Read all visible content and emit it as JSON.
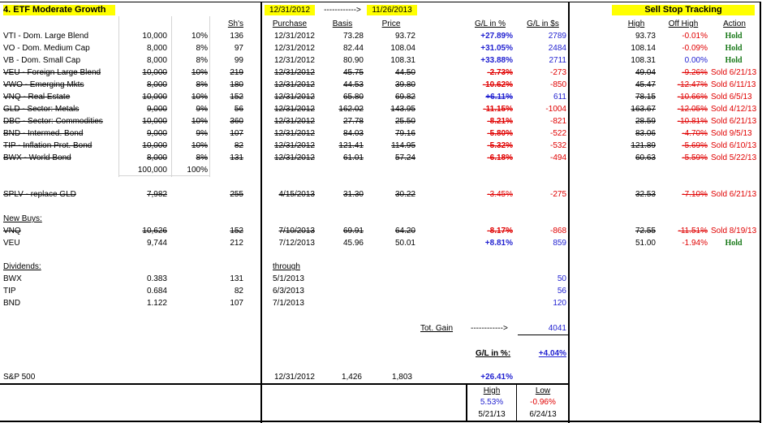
{
  "title": "4. ETF Moderate Growth",
  "header": {
    "shares": "Sh's",
    "date_start": "12/31/2012",
    "arrow": "------------>",
    "date_end": "11/26/2013",
    "purchase": "Purchase",
    "basis": "Basis",
    "price": "Price",
    "gl_pct": "G/L in %",
    "gl_dollar": "G/L in $s"
  },
  "sell_stop": {
    "title": "Sell Stop Tracking",
    "high": "High",
    "off_high": "Off High",
    "action": "Action"
  },
  "holdings": [
    {
      "name": "VTI - Dom. Large Blend",
      "amount": "10,000",
      "alloc": "10%",
      "shares": "136",
      "purchase": "12/31/2012",
      "basis": "73.28",
      "price": "93.72",
      "gl_pct": "+27.89%",
      "gl_dollar": "2789",
      "high": "93.73",
      "off_high": "-0.01%",
      "action": "Hold",
      "sold": false
    },
    {
      "name": "VO - Dom. Medium Cap",
      "amount": "8,000",
      "alloc": "8%",
      "shares": "97",
      "purchase": "12/31/2012",
      "basis": "82.44",
      "price": "108.04",
      "gl_pct": "+31.05%",
      "gl_dollar": "2484",
      "high": "108.14",
      "off_high": "-0.09%",
      "action": "Hold",
      "sold": false
    },
    {
      "name": "VB - Dom. Small Cap",
      "amount": "8,000",
      "alloc": "8%",
      "shares": "99",
      "purchase": "12/31/2012",
      "basis": "80.90",
      "price": "108.31",
      "gl_pct": "+33.88%",
      "gl_dollar": "2711",
      "high": "108.31",
      "off_high": "0.00%",
      "action": "Hold",
      "sold": false
    },
    {
      "name": "VEU - Foreign Large Blend",
      "amount": "10,000",
      "alloc": "10%",
      "shares": "219",
      "purchase": "12/31/2012",
      "basis": "45.75",
      "price": "44.50",
      "gl_pct": "-2.73%",
      "gl_dollar": "-273",
      "high": "49.04",
      "off_high": "-9.26%",
      "action": "Sold 6/21/13",
      "sold": true
    },
    {
      "name": "VWO - Emerging Mkts",
      "amount": "8,000",
      "alloc": "8%",
      "shares": "180",
      "purchase": "12/31/2012",
      "basis": "44.53",
      "price": "39.80",
      "gl_pct": "-10.62%",
      "gl_dollar": "-850",
      "high": "45.47",
      "off_high": "-12.47%",
      "action": "Sold 6/11/13",
      "sold": true
    },
    {
      "name": "VNQ - Real Estate",
      "amount": "10,000",
      "alloc": "10%",
      "shares": "152",
      "purchase": "12/31/2012",
      "basis": "65.80",
      "price": "69.82",
      "gl_pct": "+6.11%",
      "gl_dollar": "611",
      "high": "78.15",
      "off_high": "-10.66%",
      "action": "Sold 6/5/13",
      "sold": true
    },
    {
      "name": "GLD - Sector: Metals",
      "amount": "9,000",
      "alloc": "9%",
      "shares": "56",
      "purchase": "12/31/2012",
      "basis": "162.02",
      "price": "143.95",
      "gl_pct": "-11.15%",
      "gl_dollar": "-1004",
      "high": "163.67",
      "off_high": "-12.05%",
      "action": "Sold 4/12/13",
      "sold": true
    },
    {
      "name": "DBC - Sector: Commodities",
      "amount": "10,000",
      "alloc": "10%",
      "shares": "360",
      "purchase": "12/31/2012",
      "basis": "27.78",
      "price": "25.50",
      "gl_pct": "-8.21%",
      "gl_dollar": "-821",
      "high": "28.59",
      "off_high": "-10.81%",
      "action": "Sold 6/21/13",
      "sold": true
    },
    {
      "name": "BND - Intermed. Bond",
      "amount": "9,000",
      "alloc": "9%",
      "shares": "107",
      "purchase": "12/31/2012",
      "basis": "84.03",
      "price": "79.16",
      "gl_pct": "-5.80%",
      "gl_dollar": "-522",
      "high": "83.06",
      "off_high": "-4.70%",
      "action": "Sold 9/5/13",
      "sold": true
    },
    {
      "name": "TIP - Inflation Prot. Bond",
      "amount": "10,000",
      "alloc": "10%",
      "shares": "82",
      "purchase": "12/31/2012",
      "basis": "121.41",
      "price": "114.95",
      "gl_pct": "-5.32%",
      "gl_dollar": "-532",
      "high": "121.89",
      "off_high": "-5.69%",
      "action": "Sold 6/10/13",
      "sold": true
    },
    {
      "name": "BWX - World Bond",
      "amount": "8,000",
      "alloc": "8%",
      "shares": "131",
      "purchase": "12/31/2012",
      "basis": "61.01",
      "price": "57.24",
      "gl_pct": "-6.18%",
      "gl_dollar": "-494",
      "high": "60.63",
      "off_high": "-5.59%",
      "action": "Sold 5/22/13",
      "sold": true
    }
  ],
  "totals": {
    "amount": "100,000",
    "alloc": "100%"
  },
  "replacement": {
    "name": "SPLV - replace GLD",
    "amount": "7,982",
    "shares": "255",
    "purchase": "4/15/2013",
    "basis": "31.30",
    "price": "30.22",
    "gl_pct": "-3.45%",
    "gl_dollar": "-275",
    "high": "32.53",
    "off_high": "-7.10%",
    "action": "Sold 6/21/13"
  },
  "new_buys": {
    "label": "New Buys:",
    "rows": [
      {
        "name": "VNQ",
        "amount": "10,626",
        "shares": "152",
        "purchase": "7/10/2013",
        "basis": "69.91",
        "price": "64.20",
        "gl_pct": "-8.17%",
        "gl_dollar": "-868",
        "high": "72.55",
        "off_high": "-11.51%",
        "action": "Sold 8/19/13",
        "sold": true
      },
      {
        "name": "VEU",
        "amount": "9,744",
        "shares": "212",
        "purchase": "7/12/2013",
        "basis": "45.96",
        "price": "50.01",
        "gl_pct": "+8.81%",
        "gl_dollar": "859",
        "high": "51.00",
        "off_high": "-1.94%",
        "action": "Hold",
        "sold": false
      }
    ]
  },
  "dividends": {
    "label": "Dividends:",
    "through": "through",
    "rows": [
      {
        "name": "BWX",
        "per_share": "0.383",
        "shares": "131",
        "date": "5/1/2013",
        "amount": "50"
      },
      {
        "name": "TIP",
        "per_share": "0.684",
        "shares": "82",
        "date": "6/3/2013",
        "amount": "56"
      },
      {
        "name": "BND",
        "per_share": "1.122",
        "shares": "107",
        "date": "7/1/2013",
        "amount": "120"
      }
    ]
  },
  "total_gain": {
    "label": "Tot. Gain",
    "arrow": "------------>",
    "value": "4041"
  },
  "gl_total": {
    "label": "G/L in %:",
    "value": "+4.04%"
  },
  "sp500": {
    "name": "S&P 500",
    "date": "12/31/2012",
    "basis": "1,426",
    "price": "1,803",
    "gl_pct": "+26.41%"
  },
  "high_low": {
    "high_label": "High",
    "low_label": "Low",
    "high_value": "5.53%",
    "low_value": "-0.96%",
    "high_date": "5/21/13",
    "low_date": "6/24/13"
  }
}
